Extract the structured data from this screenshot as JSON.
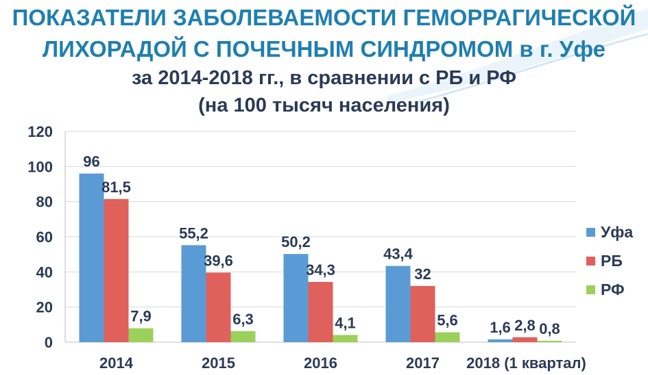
{
  "title": {
    "line1": "ПОКАЗАТЕЛИ ЗАБОЛЕВАЕМОСТИ ГЕМОРРАГИЧЕСКОЙ",
    "line2": "ЛИХОРАДОЙ С ПОЧЕЧНЫМ СИНДРОМОМ в г. Уфе",
    "line3": "за 2014-2018 гг., в сравнении с РБ и РФ",
    "line4": "(на 100 тысяч населения)"
  },
  "colors": {
    "title": "#1f7fb0",
    "text": "#2b3a55",
    "grid": "#d9d9d9"
  },
  "chart_data": {
    "type": "bar",
    "categories": [
      "2014",
      "2015",
      "2016",
      "2017",
      "2018 (1 квартал)"
    ],
    "series": [
      {
        "name": "Уфа",
        "color": "#5b9bd5",
        "values": [
          96,
          55.2,
          50.2,
          43.4,
          1.6
        ],
        "labels": [
          "96",
          "55,2",
          "50,2",
          "43,4",
          "1,6"
        ]
      },
      {
        "name": "РБ",
        "color": "#e0605c",
        "values": [
          81.5,
          39.6,
          34.3,
          32,
          2.8
        ],
        "labels": [
          "81,5",
          "39,6",
          "34,3",
          "32",
          "2,8"
        ]
      },
      {
        "name": "РФ",
        "color": "#9bd15a",
        "values": [
          7.9,
          6.3,
          4.1,
          5.6,
          0.8
        ],
        "labels": [
          "7,9",
          "6,3",
          "4,1",
          "5,6",
          "0,8"
        ]
      }
    ],
    "ylim": [
      0,
      120
    ],
    "yticks": [
      0,
      20,
      40,
      60,
      80,
      100,
      120
    ],
    "grid": true,
    "legend_position": "right"
  }
}
